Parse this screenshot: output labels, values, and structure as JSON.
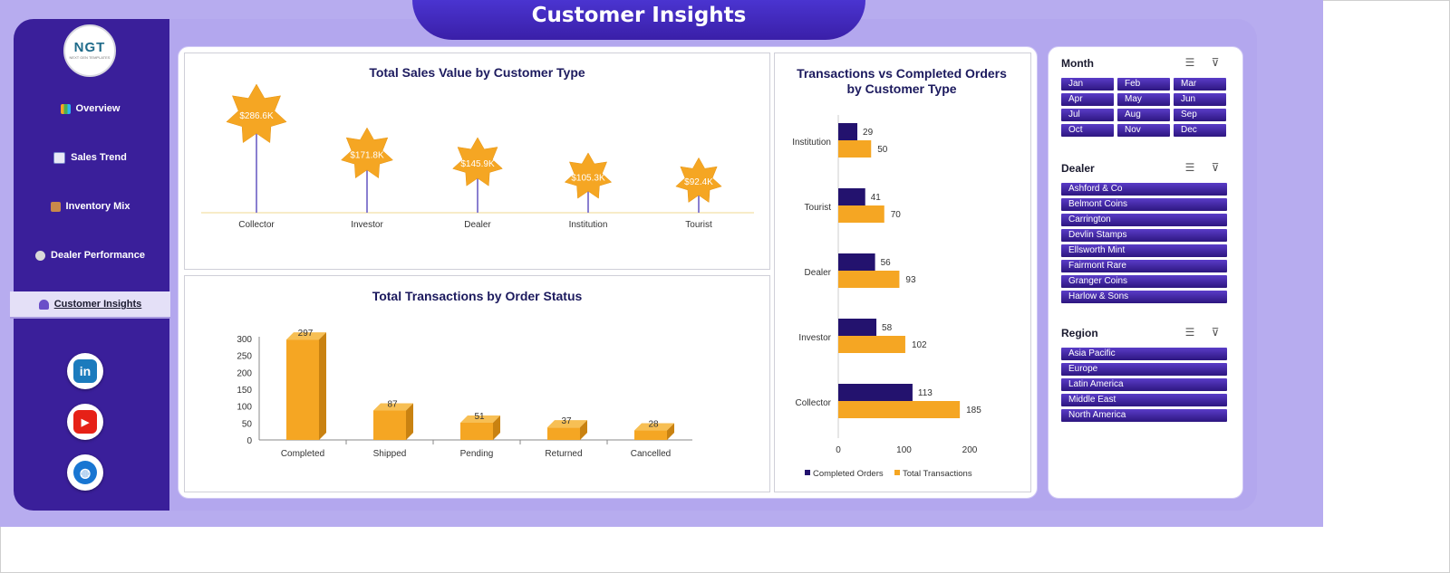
{
  "header": {
    "title": "Customer Insights"
  },
  "logo": {
    "text": "NGT",
    "tagline": "NEXT GEN TEMPLATES"
  },
  "sidebar": {
    "items": [
      {
        "label": "Overview",
        "icon": "bar-chart-icon",
        "active": false
      },
      {
        "label": "Sales Trend",
        "icon": "trend-chart-icon",
        "active": false
      },
      {
        "label": "Inventory Mix",
        "icon": "package-icon",
        "active": false
      },
      {
        "label": "Dealer Performance",
        "icon": "gear-icon",
        "active": false
      },
      {
        "label": "Customer Insights",
        "icon": "people-icon",
        "active": true
      }
    ],
    "social": [
      {
        "label": "in",
        "icon": "linkedin-icon",
        "color": "#1b7bbd"
      },
      {
        "label": "▶",
        "icon": "youtube-icon",
        "color": "#e62117"
      },
      {
        "label": "◍",
        "icon": "globe-icon",
        "color": "#1976d2"
      }
    ]
  },
  "slicers": {
    "month": {
      "title": "Month",
      "items": [
        "Jan",
        "Feb",
        "Mar",
        "Apr",
        "May",
        "Jun",
        "Jul",
        "Aug",
        "Sep",
        "Oct",
        "Nov",
        "Dec"
      ]
    },
    "dealer": {
      "title": "Dealer",
      "items": [
        "Ashford & Co",
        "Belmont Coins",
        "Carrington",
        "Devlin Stamps",
        "Ellsworth Mint",
        "Fairmont Rare",
        "Granger Coins",
        "Harlow & Sons"
      ]
    },
    "region": {
      "title": "Region",
      "items": [
        "Asia Pacific",
        "Europe",
        "Latin America",
        "Middle East",
        "North America"
      ]
    }
  },
  "colors": {
    "accent": "#3a1f9a",
    "gold": "#f5a623",
    "navy": "#23126e",
    "background": "#b7acef"
  },
  "chart_data": [
    {
      "type": "bar",
      "title": "Total Sales Value by Customer Type",
      "categories": [
        "Collector",
        "Investor",
        "Dealer",
        "Institution",
        "Tourist"
      ],
      "values": [
        286.6,
        171.8,
        145.9,
        105.3,
        92.4
      ],
      "data_labels": [
        "$286.6K",
        "$171.8K",
        "$145.9K",
        "$105.3K",
        "$92.4K"
      ],
      "unit": "K"
    },
    {
      "type": "bar",
      "title": "Total Transactions by Order Status",
      "categories": [
        "Completed",
        "Shipped",
        "Pending",
        "Returned",
        "Cancelled"
      ],
      "values": [
        297,
        87,
        51,
        37,
        28
      ],
      "yticks": [
        "0",
        "50",
        "100",
        "150",
        "200",
        "250",
        "300"
      ],
      "ylim": [
        0,
        300
      ]
    },
    {
      "type": "bar",
      "orientation": "horizontal",
      "title": "Transactions vs Completed Orders by Customer Type",
      "categories": [
        "Institution",
        "Tourist",
        "Dealer",
        "Investor",
        "Collector"
      ],
      "series": [
        {
          "name": "Completed Orders",
          "values": [
            29,
            41,
            56,
            58,
            113
          ],
          "color": "#23126e"
        },
        {
          "name": "Total Transactions",
          "values": [
            50,
            70,
            93,
            102,
            185
          ],
          "color": "#f5a623"
        }
      ],
      "xticks": [
        "0",
        "100",
        "200"
      ],
      "xlim": [
        0,
        200
      ],
      "legend": "bottom"
    }
  ]
}
